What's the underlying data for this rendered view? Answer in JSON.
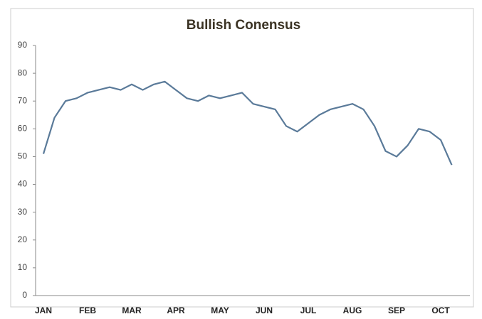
{
  "chart_data": {
    "type": "line",
    "title": "Bullish Conensus",
    "categories": [
      "JAN",
      null,
      null,
      null,
      "FEB",
      null,
      null,
      null,
      "MAR",
      null,
      null,
      null,
      "APR",
      null,
      null,
      null,
      "MAY",
      null,
      null,
      null,
      "JUN",
      null,
      null,
      null,
      "JUL",
      null,
      null,
      null,
      "AUG",
      null,
      null,
      null,
      "SEP",
      null,
      null,
      null,
      "OCT",
      null
    ],
    "series": [
      {
        "color": "#5a7a99",
        "values": [
          51,
          64,
          70,
          71,
          73,
          74,
          75,
          74,
          76,
          74,
          76,
          77,
          74,
          71,
          70,
          72,
          71,
          72,
          73,
          69,
          68,
          67,
          61,
          59,
          62,
          65,
          67,
          68,
          69,
          67,
          61,
          52,
          50,
          54,
          60,
          59,
          56,
          47
        ]
      }
    ],
    "ylim": [
      0,
      90
    ],
    "yticks": [
      0,
      10,
      20,
      30,
      40,
      50,
      60,
      70,
      80,
      90
    ],
    "grid": false
  }
}
